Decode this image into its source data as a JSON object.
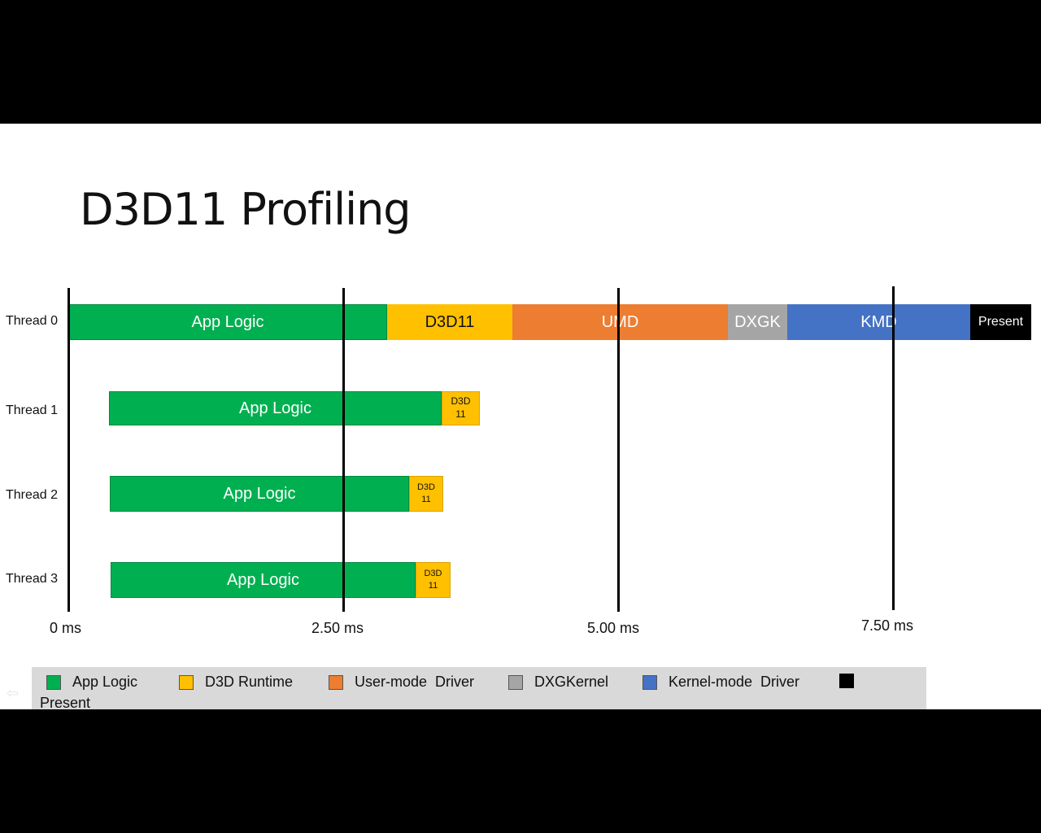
{
  "slide": {
    "title": "D3D11 Profiling"
  },
  "threads": [
    {
      "label": "Thread 0"
    },
    {
      "label": "Thread 1"
    },
    {
      "label": "Thread 2"
    },
    {
      "label": "Thread 3"
    }
  ],
  "segments": {
    "t0": [
      "App Logic",
      "D3D11",
      "UMD",
      "DXGK",
      "KMD",
      "Present"
    ],
    "t1": [
      "App Logic",
      "D3D\n11"
    ],
    "t2": [
      "App Logic",
      "D3D\n11"
    ],
    "t3": [
      "App Logic",
      "D3D\n11"
    ]
  },
  "axis": {
    "ticks": [
      "0 ms",
      "2.50 ms",
      "5.00 ms",
      "7.50 ms"
    ]
  },
  "legend": {
    "items": [
      {
        "label": "App Logic",
        "color": "#00b050"
      },
      {
        "label": "D3D Runtime",
        "color": "#ffc000"
      },
      {
        "label": "User-mode  Driver",
        "color": "#ed7d31"
      },
      {
        "label": "DXGKernel",
        "color": "#a5a5a5"
      },
      {
        "label": "Kernel-mode  Driver",
        "color": "#4472c4"
      },
      {
        "label": "",
        "color": "#000000"
      }
    ],
    "present_label": "Present"
  },
  "colors": {
    "app_logic": "#00b050",
    "d3d": "#ffc000",
    "umd": "#ed7d31",
    "dxgk": "#a5a5a5",
    "kmd": "#4472c4",
    "present": "#000000"
  }
}
